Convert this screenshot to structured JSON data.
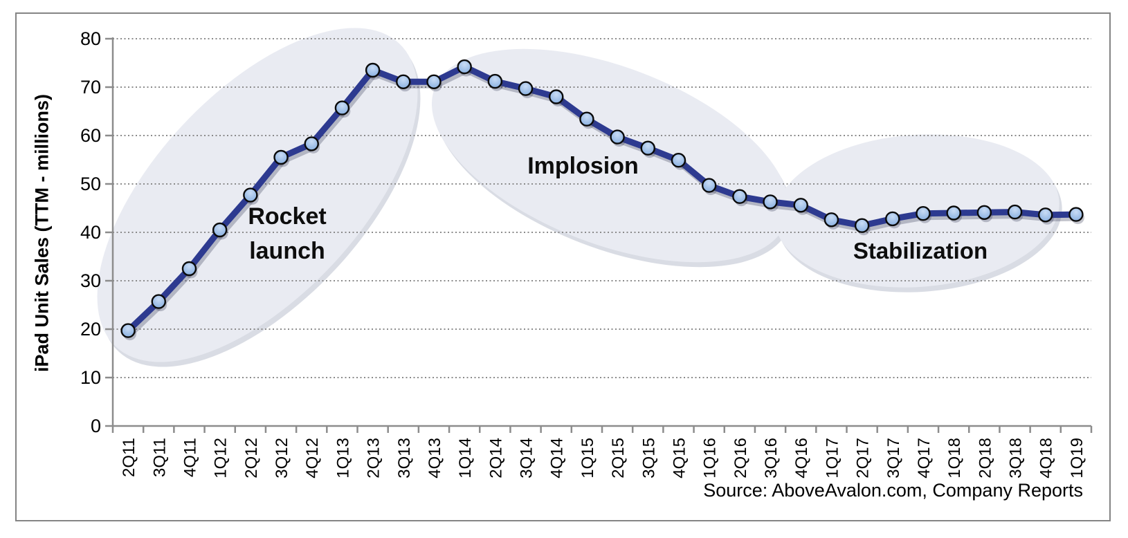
{
  "chart_data": {
    "type": "line",
    "title": "",
    "xlabel": "",
    "ylabel": "iPad Unit Sales (TTM - millions)",
    "ylim": [
      0,
      80
    ],
    "ytick_interval": 10,
    "yticks": [
      0,
      10,
      20,
      30,
      40,
      50,
      60,
      70,
      80
    ],
    "grid": "horizontal-dotted",
    "legend_position": "none",
    "categories": [
      "2Q11",
      "3Q11",
      "4Q11",
      "1Q12",
      "2Q12",
      "3Q12",
      "4Q12",
      "1Q13",
      "2Q13",
      "3Q13",
      "4Q13",
      "1Q14",
      "2Q14",
      "3Q14",
      "4Q14",
      "1Q15",
      "2Q15",
      "3Q15",
      "4Q15",
      "1Q16",
      "2Q16",
      "3Q16",
      "4Q16",
      "1Q17",
      "2Q17",
      "3Q17",
      "4Q17",
      "1Q18",
      "2Q18",
      "3Q18",
      "4Q18",
      "1Q19"
    ],
    "series": [
      {
        "name": "iPad Unit Sales (TTM - millions)",
        "values": [
          19.7,
          25.7,
          32.5,
          40.5,
          47.7,
          55.5,
          58.3,
          65.7,
          73.5,
          71.1,
          71.1,
          74.2,
          71.2,
          69.7,
          68.0,
          63.4,
          59.7,
          57.4,
          54.9,
          49.7,
          47.4,
          46.3,
          45.6,
          42.6,
          41.4,
          42.8,
          43.9,
          44.0,
          44.1,
          44.2,
          43.6,
          43.7
        ]
      }
    ],
    "annotations": [
      {
        "id": "rocket-launch",
        "label": "Rocket launch"
      },
      {
        "id": "implosion",
        "label": "Implosion"
      },
      {
        "id": "stabilization",
        "label": "Stabilization"
      }
    ],
    "source_note": "Source: AboveAvalon.com, Company Reports",
    "colors": {
      "line": "#2d3a90",
      "line_shadow": "rgba(55,60,85,0.30)",
      "marker_fill_top": "#c9dcf5",
      "marker_fill_bottom": "#7fa9dd",
      "marker_stroke": "#0a0a0a",
      "ellipse_fill": "#e9ebf2",
      "ellipse_shadow": "rgba(130,140,165,0.30)",
      "axis": "#8c8c8c",
      "gridline": "#8a8a8a",
      "text": "#000000"
    }
  }
}
